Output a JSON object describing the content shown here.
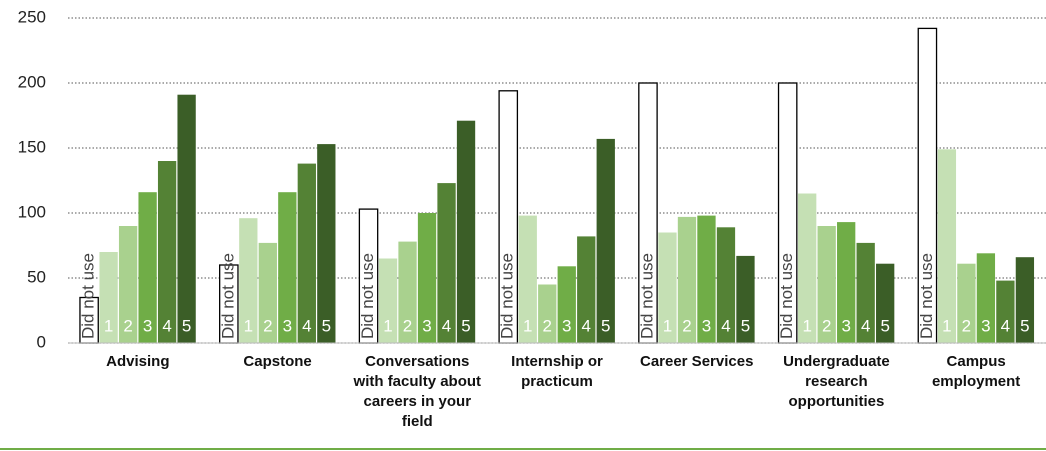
{
  "chart_data": {
    "type": "bar",
    "categories": [
      "Advising",
      "Capstone",
      "Conversations with faculty about careers in your field",
      "Internship or practicum",
      "Career Services",
      "Undergraduate research opportunities",
      "Campus employment"
    ],
    "series": [
      {
        "name": "Did not use",
        "color": "#ffffff",
        "values": [
          35,
          60,
          103,
          194,
          200,
          200,
          242
        ]
      },
      {
        "name": "1",
        "color": "#c5e0b4",
        "values": [
          70,
          96,
          65,
          98,
          85,
          115,
          149
        ]
      },
      {
        "name": "2",
        "color": "#a9d18e",
        "values": [
          90,
          77,
          78,
          45,
          97,
          90,
          61
        ]
      },
      {
        "name": "3",
        "color": "#70ad47",
        "values": [
          116,
          116,
          100,
          59,
          98,
          93,
          69
        ]
      },
      {
        "name": "4",
        "color": "#548235",
        "values": [
          140,
          138,
          123,
          82,
          89,
          77,
          48
        ]
      },
      {
        "name": "5",
        "color": "#3b5e27",
        "values": [
          191,
          153,
          171,
          157,
          67,
          61,
          66
        ]
      }
    ],
    "ylim": [
      0,
      250
    ],
    "yticks": [
      0,
      50,
      100,
      150,
      200,
      250
    ],
    "grid": true
  }
}
